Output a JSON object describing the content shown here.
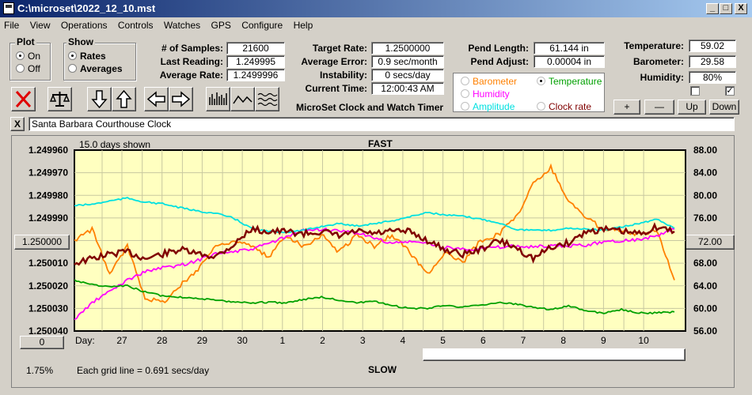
{
  "window": {
    "title": "C:\\microset\\2022_12_10.mst",
    "min": "_",
    "max": "□",
    "close": "X"
  },
  "menu": [
    "File",
    "View",
    "Operations",
    "Controls",
    "Watches",
    "GPS",
    "Configure",
    "Help"
  ],
  "plot_group": {
    "title": "Plot",
    "on": "On",
    "off": "Off",
    "selected": "On"
  },
  "show_group": {
    "title": "Show",
    "rates": "Rates",
    "averages": "Averages",
    "selected": "Rates"
  },
  "stats": {
    "samples_label": "# of Samples:",
    "samples": "21600",
    "last_label": "Last Reading:",
    "last": "1.249995",
    "avg_label": "Average Rate:",
    "avg": "1.2499996",
    "target_label": "Target Rate:",
    "target": "1.2500000",
    "error_label": "Average Error:",
    "error": "0.9 sec/month",
    "instab_label": "Instability:",
    "instab": "0 secs/day",
    "time_label": "Current Time:",
    "time": "12:00:43 AM",
    "pend_len_label": "Pend Length:",
    "pend_len": "61.144 in",
    "pend_adj_label": "Pend Adjust:",
    "pend_adj": "0.00004 in",
    "temp_label": "Temperature:",
    "temp": "59.02",
    "baro_label": "Barometer:",
    "baro": "29.58",
    "hum_label": "Humidity:",
    "hum": "80%"
  },
  "app_caption": "MicroSet Clock and Watch Timer",
  "aux_options": {
    "barometer": "Barometer",
    "temperature": "Temperature",
    "humidity": "Humidity",
    "amplitude": "Amplitude",
    "clock_rate": "Clock rate",
    "selected": "Temperature",
    "colors": {
      "barometer": "#ff8000",
      "temperature": "#00a000",
      "humidity": "#ff00ff",
      "amplitude": "#00e0e0",
      "clock_rate": "#800000"
    }
  },
  "aux_buttons": {
    "plus": "+",
    "minus": "—",
    "up": "Up",
    "down": "Down"
  },
  "clock_name": "Santa Barbara Courthouse Clock",
  "clear_button": "X",
  "plot": {
    "days_shown": "15.0 days shown",
    "top_label": "FAST",
    "bottom_label": "SLOW",
    "day_label": "Day:",
    "grid_note": "Each grid line = 0.691 secs/day",
    "percent": "1.75%",
    "center_value": "1.250000",
    "center_right": "72.00",
    "zero_button": "0"
  },
  "chart_data": {
    "type": "line",
    "x_label": "Day",
    "x_ticks": [
      "27",
      "28",
      "29",
      "30",
      "1",
      "2",
      "3",
      "4",
      "5",
      "6",
      "7",
      "8",
      "9",
      "10"
    ],
    "y_left_ticks": [
      "1.249960",
      "1.249970",
      "1.249980",
      "1.249990",
      "1.250000",
      "1.250010",
      "1.250020",
      "1.250030",
      "1.250040"
    ],
    "y_left_range": [
      1.24996,
      1.25004
    ],
    "y_right_ticks": [
      "88.00",
      "84.00",
      "80.00",
      "76.00",
      "72.00",
      "68.00",
      "64.00",
      "60.00",
      "56.00"
    ],
    "y_right_range": [
      56,
      88
    ],
    "grid": true,
    "series": [
      {
        "color": "#800000",
        "axis": "left",
        "values": [
          1.25001,
          1.250008,
          1.250006,
          1.250005,
          1.250008,
          1.250006,
          1.250004,
          1.250006,
          1.250007,
          1.250002,
          1.249995,
          1.249996,
          1.249996,
          1.249997,
          1.249996,
          1.249998,
          1.249996,
          1.249997,
          1.249996,
          1.249996,
          1.25,
          1.250004,
          1.250006,
          1.250004,
          1.25,
          1.250003,
          1.250008,
          1.250003,
          1.250001,
          1.249996,
          1.249995,
          1.249996,
          1.249997,
          1.249994,
          1.249996
        ]
      },
      {
        "color": "#00e0e0",
        "axis": "right",
        "values": [
          78.2,
          78.4,
          79.0,
          79.5,
          78.8,
          78.5,
          77.8,
          77.2,
          76.8,
          76.0,
          74.2,
          73.6,
          73.5,
          73.8,
          74.5,
          75.0,
          74.6,
          75.0,
          75.5,
          76.2,
          77.0,
          76.5,
          76.3,
          75.8,
          75.2,
          74.0,
          73.8,
          73.8,
          74.2,
          74.0,
          73.8,
          74.4,
          75.0,
          75.8,
          74.2
        ]
      },
      {
        "color": "#ff00ff",
        "axis": "right",
        "values": [
          58.0,
          61.0,
          63.0,
          65.0,
          66.5,
          67.2,
          67.6,
          68.5,
          69.8,
          70.0,
          70.4,
          71.5,
          72.6,
          73.8,
          74.0,
          73.6,
          73.4,
          72.4,
          71.5,
          71.8,
          71.5,
          70.8,
          70.5,
          70.6,
          70.8,
          71.0,
          70.9,
          71.0,
          71.0,
          71.2,
          71.8,
          72.0,
          72.2,
          72.8,
          74.0
        ]
      },
      {
        "color": "#ff8000",
        "axis": "right",
        "values": [
          72.0,
          74.0,
          66.0,
          71.0,
          62.0,
          61.0,
          64.0,
          67.0,
          71.0,
          72.0,
          71.0,
          69.0,
          73.0,
          71.0,
          73.0,
          70.0,
          73.0,
          71.0,
          73.0,
          70.0,
          66.0,
          70.0,
          68.0,
          72.0,
          73.0,
          76.0,
          82.0,
          85.0,
          79.0,
          76.0,
          74.0,
          74.0,
          73.0,
          74.0,
          65.0
        ]
      },
      {
        "color": "#00a000",
        "axis": "right",
        "values": [
          65.0,
          64.2,
          63.8,
          64.0,
          62.9,
          62.2,
          62.0,
          61.8,
          61.4,
          61.2,
          61.0,
          61.1,
          61.0,
          61.6,
          62.0,
          61.5,
          61.0,
          61.2,
          60.5,
          60.0,
          60.0,
          60.6,
          60.2,
          60.6,
          61.0,
          60.8,
          60.2,
          59.8,
          60.5,
          59.5,
          59.2,
          59.8,
          59.2,
          59.2,
          59.4
        ]
      }
    ]
  }
}
